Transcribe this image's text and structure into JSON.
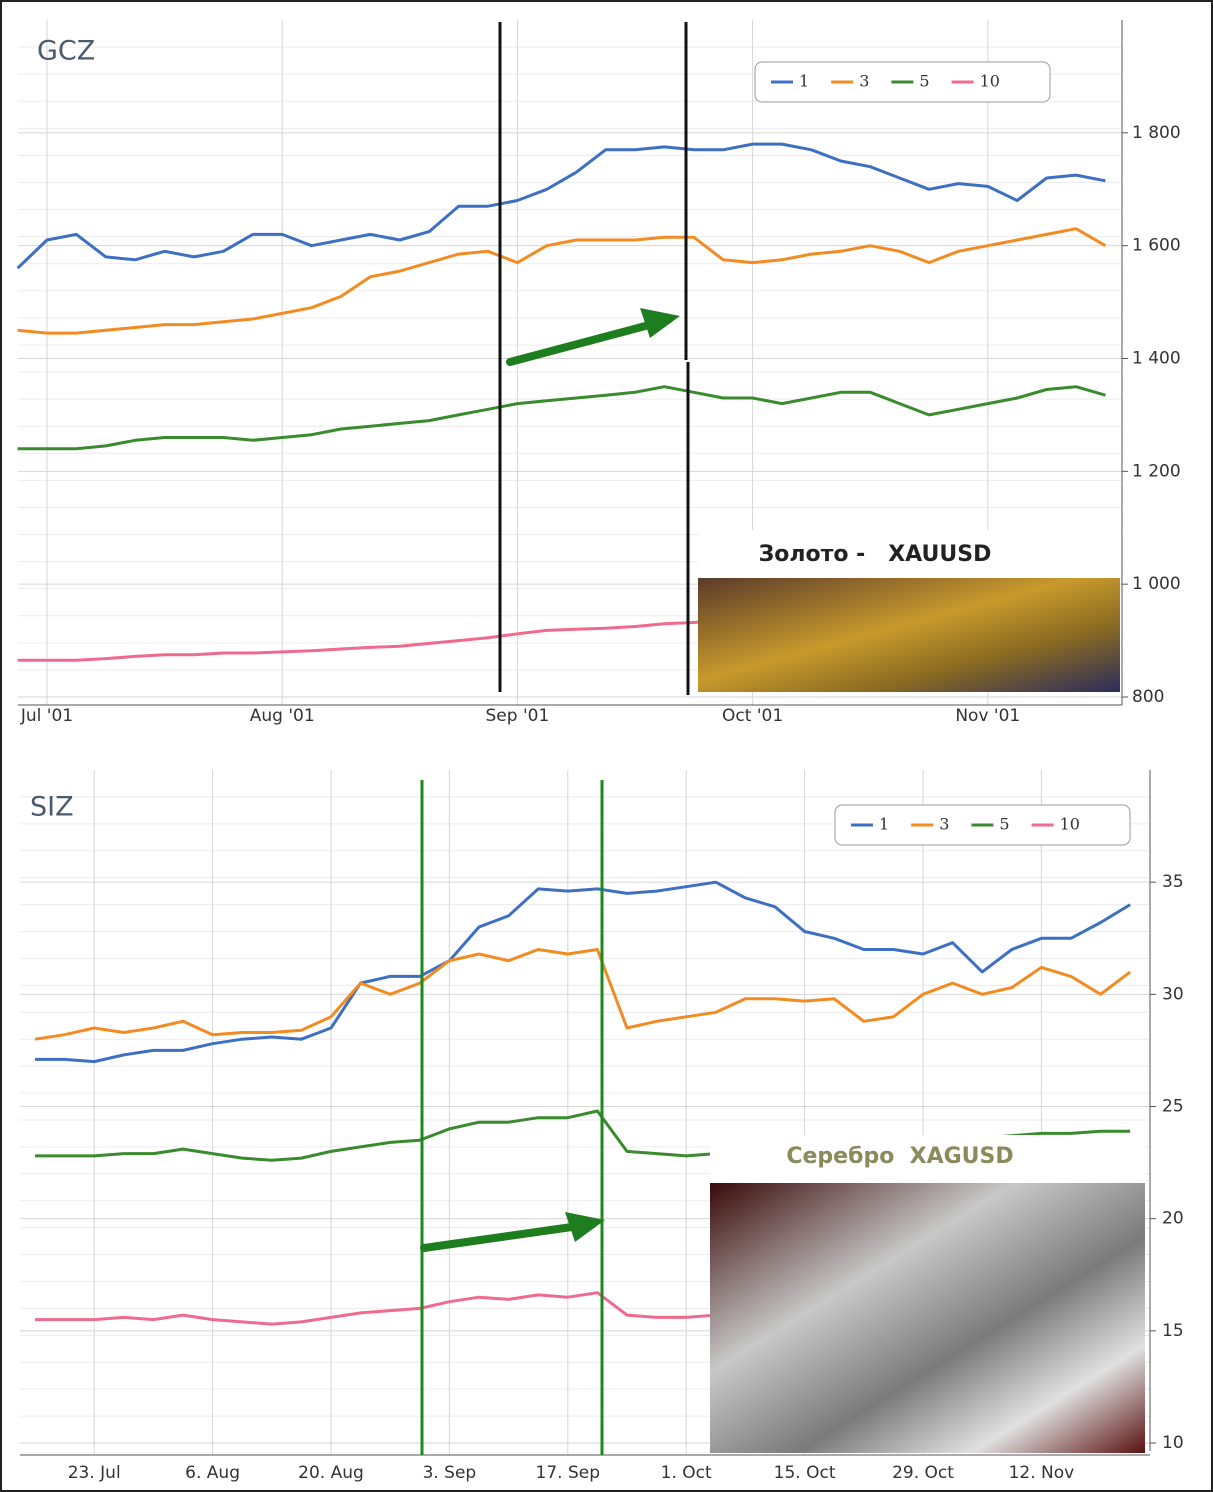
{
  "chart_data": [
    {
      "type": "line",
      "title": "GCZ",
      "legend": "top-right",
      "grid": true,
      "categories": [
        null,
        "Jul '01",
        null,
        null,
        null,
        null,
        null,
        null,
        null,
        "Aug '01",
        null,
        null,
        null,
        null,
        null,
        null,
        null,
        "Sep '01",
        null,
        null,
        null,
        null,
        null,
        null,
        null,
        "Oct '01",
        null,
        null,
        null,
        null,
        null,
        null,
        null,
        "Nov '01",
        null,
        null,
        null,
        null
      ],
      "ylim": [
        800,
        2000
      ],
      "yticks": [
        800,
        {
          "value": 1000,
          "label": "1 000"
        },
        {
          "value": 1200,
          "label": "1 200"
        },
        {
          "value": 1400,
          "label": "1 400"
        },
        {
          "value": 1600,
          "label": "1 600"
        },
        {
          "value": 1800,
          "label": "1 800"
        }
      ],
      "annotations": [
        "Золото -   XAUUSD"
      ],
      "series": [
        {
          "name": "1",
          "color": "#3d6fc2",
          "values": [
            1560,
            1610,
            1620,
            1580,
            1575,
            1590,
            1580,
            1590,
            1620,
            1620,
            1600,
            1610,
            1620,
            1610,
            1625,
            1670,
            1670,
            1680,
            1700,
            1730,
            1770,
            1770,
            1775,
            1770,
            1770,
            1780,
            1780,
            1770,
            1750,
            1740,
            1720,
            1700,
            1710,
            1705,
            1680,
            1720,
            1725,
            1715
          ]
        },
        {
          "name": "3",
          "color": "#f28b22",
          "values": [
            1450,
            1445,
            1445,
            1450,
            1455,
            1460,
            1460,
            1465,
            1470,
            1480,
            1490,
            1510,
            1545,
            1555,
            1570,
            1585,
            1590,
            1570,
            1600,
            1610,
            1610,
            1610,
            1615,
            1615,
            1575,
            1570,
            1575,
            1585,
            1590,
            1600,
            1590,
            1570,
            1590,
            1600,
            1610,
            1620,
            1630,
            1600
          ]
        },
        {
          "name": "5",
          "color": "#3a8a2e",
          "values": [
            1240,
            1240,
            1240,
            1245,
            1255,
            1260,
            1260,
            1260,
            1255,
            1260,
            1265,
            1275,
            1280,
            1285,
            1290,
            1300,
            1310,
            1320,
            1325,
            1330,
            1335,
            1340,
            1350,
            1340,
            1330,
            1330,
            1320,
            1330,
            1340,
            1340,
            1320,
            1300,
            1310,
            1320,
            1330,
            1345,
            1350,
            1335
          ]
        },
        {
          "name": "10",
          "color": "#ef6a8c",
          "values": [
            865,
            865,
            865,
            868,
            872,
            875,
            875,
            878,
            878,
            880,
            882,
            885,
            888,
            890,
            895,
            900,
            905,
            912,
            918,
            920,
            922,
            925,
            930,
            932,
            935,
            938,
            940,
            942,
            945,
            948,
            950,
            952,
            955,
            958,
            960,
            962,
            962,
            962
          ]
        }
      ]
    },
    {
      "type": "line",
      "title": "SIZ",
      "legend": "top-right",
      "grid": true,
      "categories": [
        null,
        null,
        "23. Jul",
        null,
        null,
        null,
        "6. Aug",
        null,
        null,
        null,
        "20. Aug",
        null,
        null,
        null,
        "3. Sep",
        null,
        null,
        null,
        "17. Sep",
        null,
        null,
        null,
        "1. Oct",
        null,
        null,
        null,
        "15. Oct",
        null,
        null,
        null,
        "29. Oct",
        null,
        null,
        null,
        "12. Nov",
        null,
        null,
        null
      ],
      "ylim": [
        10,
        40
      ],
      "yticks": [
        10,
        15,
        20,
        25,
        30,
        35
      ],
      "annotations": [
        "Серебро  XAGUSD"
      ],
      "series": [
        {
          "name": "1",
          "color": "#3d6fc2",
          "values": [
            27.1,
            27.1,
            27.0,
            27.3,
            27.5,
            27.5,
            27.8,
            28.0,
            28.1,
            28.0,
            28.5,
            30.5,
            30.8,
            30.8,
            31.5,
            33,
            33.5,
            34.7,
            34.6,
            34.7,
            34.5,
            34.6,
            34.8,
            35,
            34.3,
            33.9,
            32.8,
            32.5,
            32,
            32,
            31.8,
            32.3,
            31,
            32,
            32.5,
            32.5,
            33.2,
            34
          ]
        },
        {
          "name": "3",
          "color": "#f28b22",
          "values": [
            28,
            28.2,
            28.5,
            28.3,
            28.5,
            28.8,
            28.2,
            28.3,
            28.3,
            28.4,
            29,
            30.5,
            30,
            30.5,
            31.5,
            31.8,
            31.5,
            32,
            31.8,
            32,
            28.5,
            28.8,
            29,
            29.2,
            29.8,
            29.8,
            29.7,
            29.8,
            28.8,
            29,
            30,
            30.5,
            30,
            30.3,
            31.2,
            30.8,
            30,
            31
          ]
        },
        {
          "name": "5",
          "color": "#3a8a2e",
          "values": [
            22.8,
            22.8,
            22.8,
            22.9,
            22.9,
            23.1,
            22.9,
            22.7,
            22.6,
            22.7,
            23,
            23.2,
            23.4,
            23.5,
            24,
            24.3,
            24.3,
            24.5,
            24.5,
            24.8,
            23,
            22.9,
            22.8,
            22.9,
            23,
            23.1,
            23.2,
            23.1,
            23,
            23.2,
            23.4,
            23.5,
            23.6,
            23.7,
            23.8,
            23.8,
            23.9,
            23.9
          ]
        },
        {
          "name": "10",
          "color": "#ef6a8c",
          "values": [
            15.5,
            15.5,
            15.5,
            15.6,
            15.5,
            15.7,
            15.5,
            15.4,
            15.3,
            15.4,
            15.6,
            15.8,
            15.9,
            16,
            16.3,
            16.5,
            16.4,
            16.6,
            16.5,
            16.7,
            15.7,
            15.6,
            15.6,
            15.7,
            15.8,
            15.9,
            16,
            16.1,
            16.2,
            16.3,
            16.4,
            16.5,
            16.6,
            16.7,
            16.8,
            16.9,
            17,
            17.1
          ]
        }
      ]
    }
  ]
}
